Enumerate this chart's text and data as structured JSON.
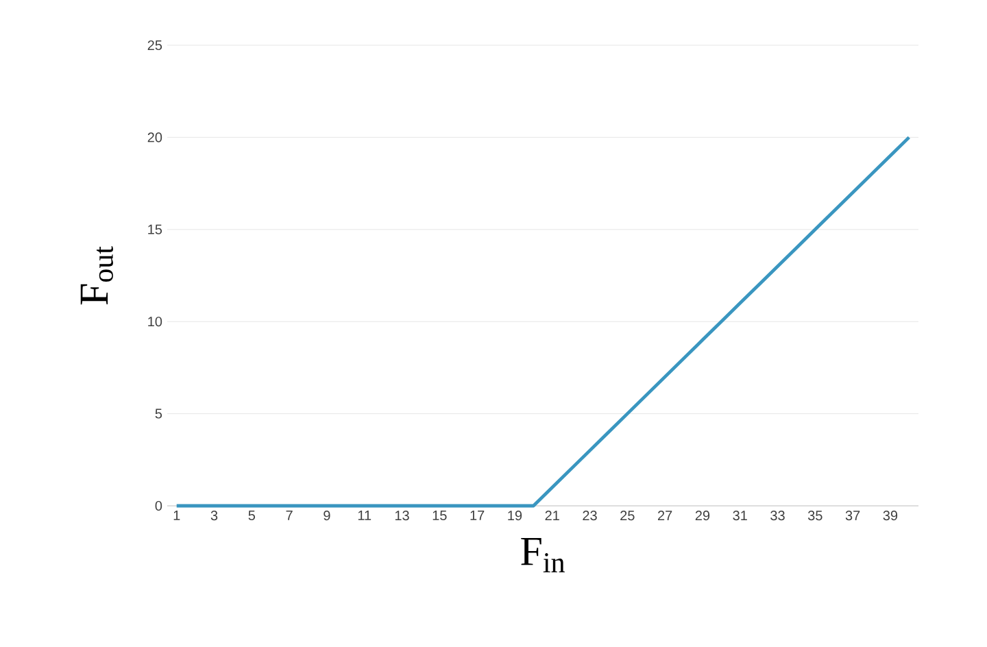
{
  "chart_data": {
    "type": "line",
    "xlabel": "F$_{in}$",
    "ylabel": "F$_{out}$",
    "categories": [
      "1",
      null,
      "3",
      null,
      "5",
      null,
      "7",
      null,
      "9",
      null,
      "11",
      null,
      "13",
      null,
      "15",
      null,
      "17",
      null,
      "19",
      null,
      "21",
      null,
      "23",
      null,
      "25",
      null,
      "27",
      null,
      "29",
      null,
      "31",
      null,
      "33",
      null,
      "35",
      null,
      "37",
      null,
      "39",
      null
    ],
    "values": [
      0,
      0,
      0,
      0,
      0,
      0,
      0,
      0,
      0,
      0,
      0,
      0,
      0,
      0,
      0,
      0,
      0,
      0,
      0,
      0,
      1,
      2,
      3,
      4,
      5,
      6,
      7,
      8,
      9,
      10,
      11,
      12,
      13,
      14,
      15,
      16,
      17,
      18,
      19,
      20
    ],
    "color": "#3a96c0",
    "ylim": [
      0,
      25
    ],
    "yticks": [
      0,
      5,
      10,
      15,
      20,
      25
    ],
    "grid": "y"
  }
}
